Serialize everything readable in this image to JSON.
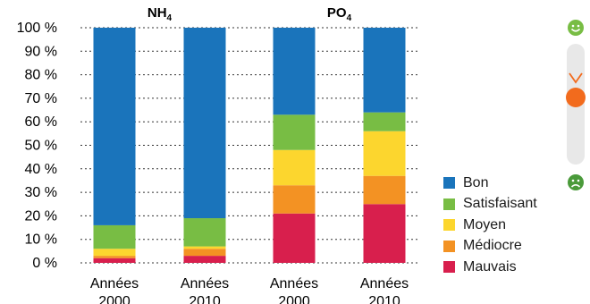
{
  "chart_data": {
    "type": "bar",
    "stacked": true,
    "groups": [
      {
        "label": "NH",
        "subscript": "4"
      },
      {
        "label": "PO",
        "subscript": "4"
      }
    ],
    "categories": [
      {
        "line1": "Années",
        "line2": "2000",
        "group": 0
      },
      {
        "line1": "Années",
        "line2": "2010",
        "group": 0
      },
      {
        "line1": "Années",
        "line2": "2000",
        "group": 1
      },
      {
        "line1": "Années",
        "line2": "2010",
        "group": 1
      }
    ],
    "series": [
      {
        "name": "Mauvais",
        "color": "#d81f4d",
        "values": [
          2,
          3,
          21,
          25
        ]
      },
      {
        "name": "Médiocre",
        "color": "#f39223",
        "values": [
          1,
          3,
          12,
          12
        ]
      },
      {
        "name": "Moyen",
        "color": "#fcd62e",
        "values": [
          3,
          1,
          15,
          19
        ]
      },
      {
        "name": "Satisfaisant",
        "color": "#78bd44",
        "values": [
          10,
          12,
          15,
          8
        ]
      },
      {
        "name": "Bon",
        "color": "#1a74bb",
        "values": [
          84,
          81,
          37,
          36
        ]
      }
    ],
    "legend_order": [
      "Bon",
      "Satisfaisant",
      "Moyen",
      "Médiocre",
      "Mauvais"
    ],
    "y_ticks": [
      "0 %",
      "10 %",
      "20 %",
      "30 %",
      "40 %",
      "50 %",
      "60 %",
      "70 %",
      "80 %",
      "90 %",
      "100 %"
    ],
    "ylim": [
      0,
      100
    ],
    "grid": true,
    "legend_position": "right"
  },
  "quality_scale": {
    "top_icon": "smiley-happy-icon",
    "bottom_icon": "smiley-sad-icon",
    "marker_icon": "chevron-down-icon",
    "marker_level": 0.6,
    "happy_color": "#78bd44",
    "sad_color": "#4a9a3a",
    "marker_color": "#f26b1d",
    "track_color": "#e8e8e8"
  }
}
